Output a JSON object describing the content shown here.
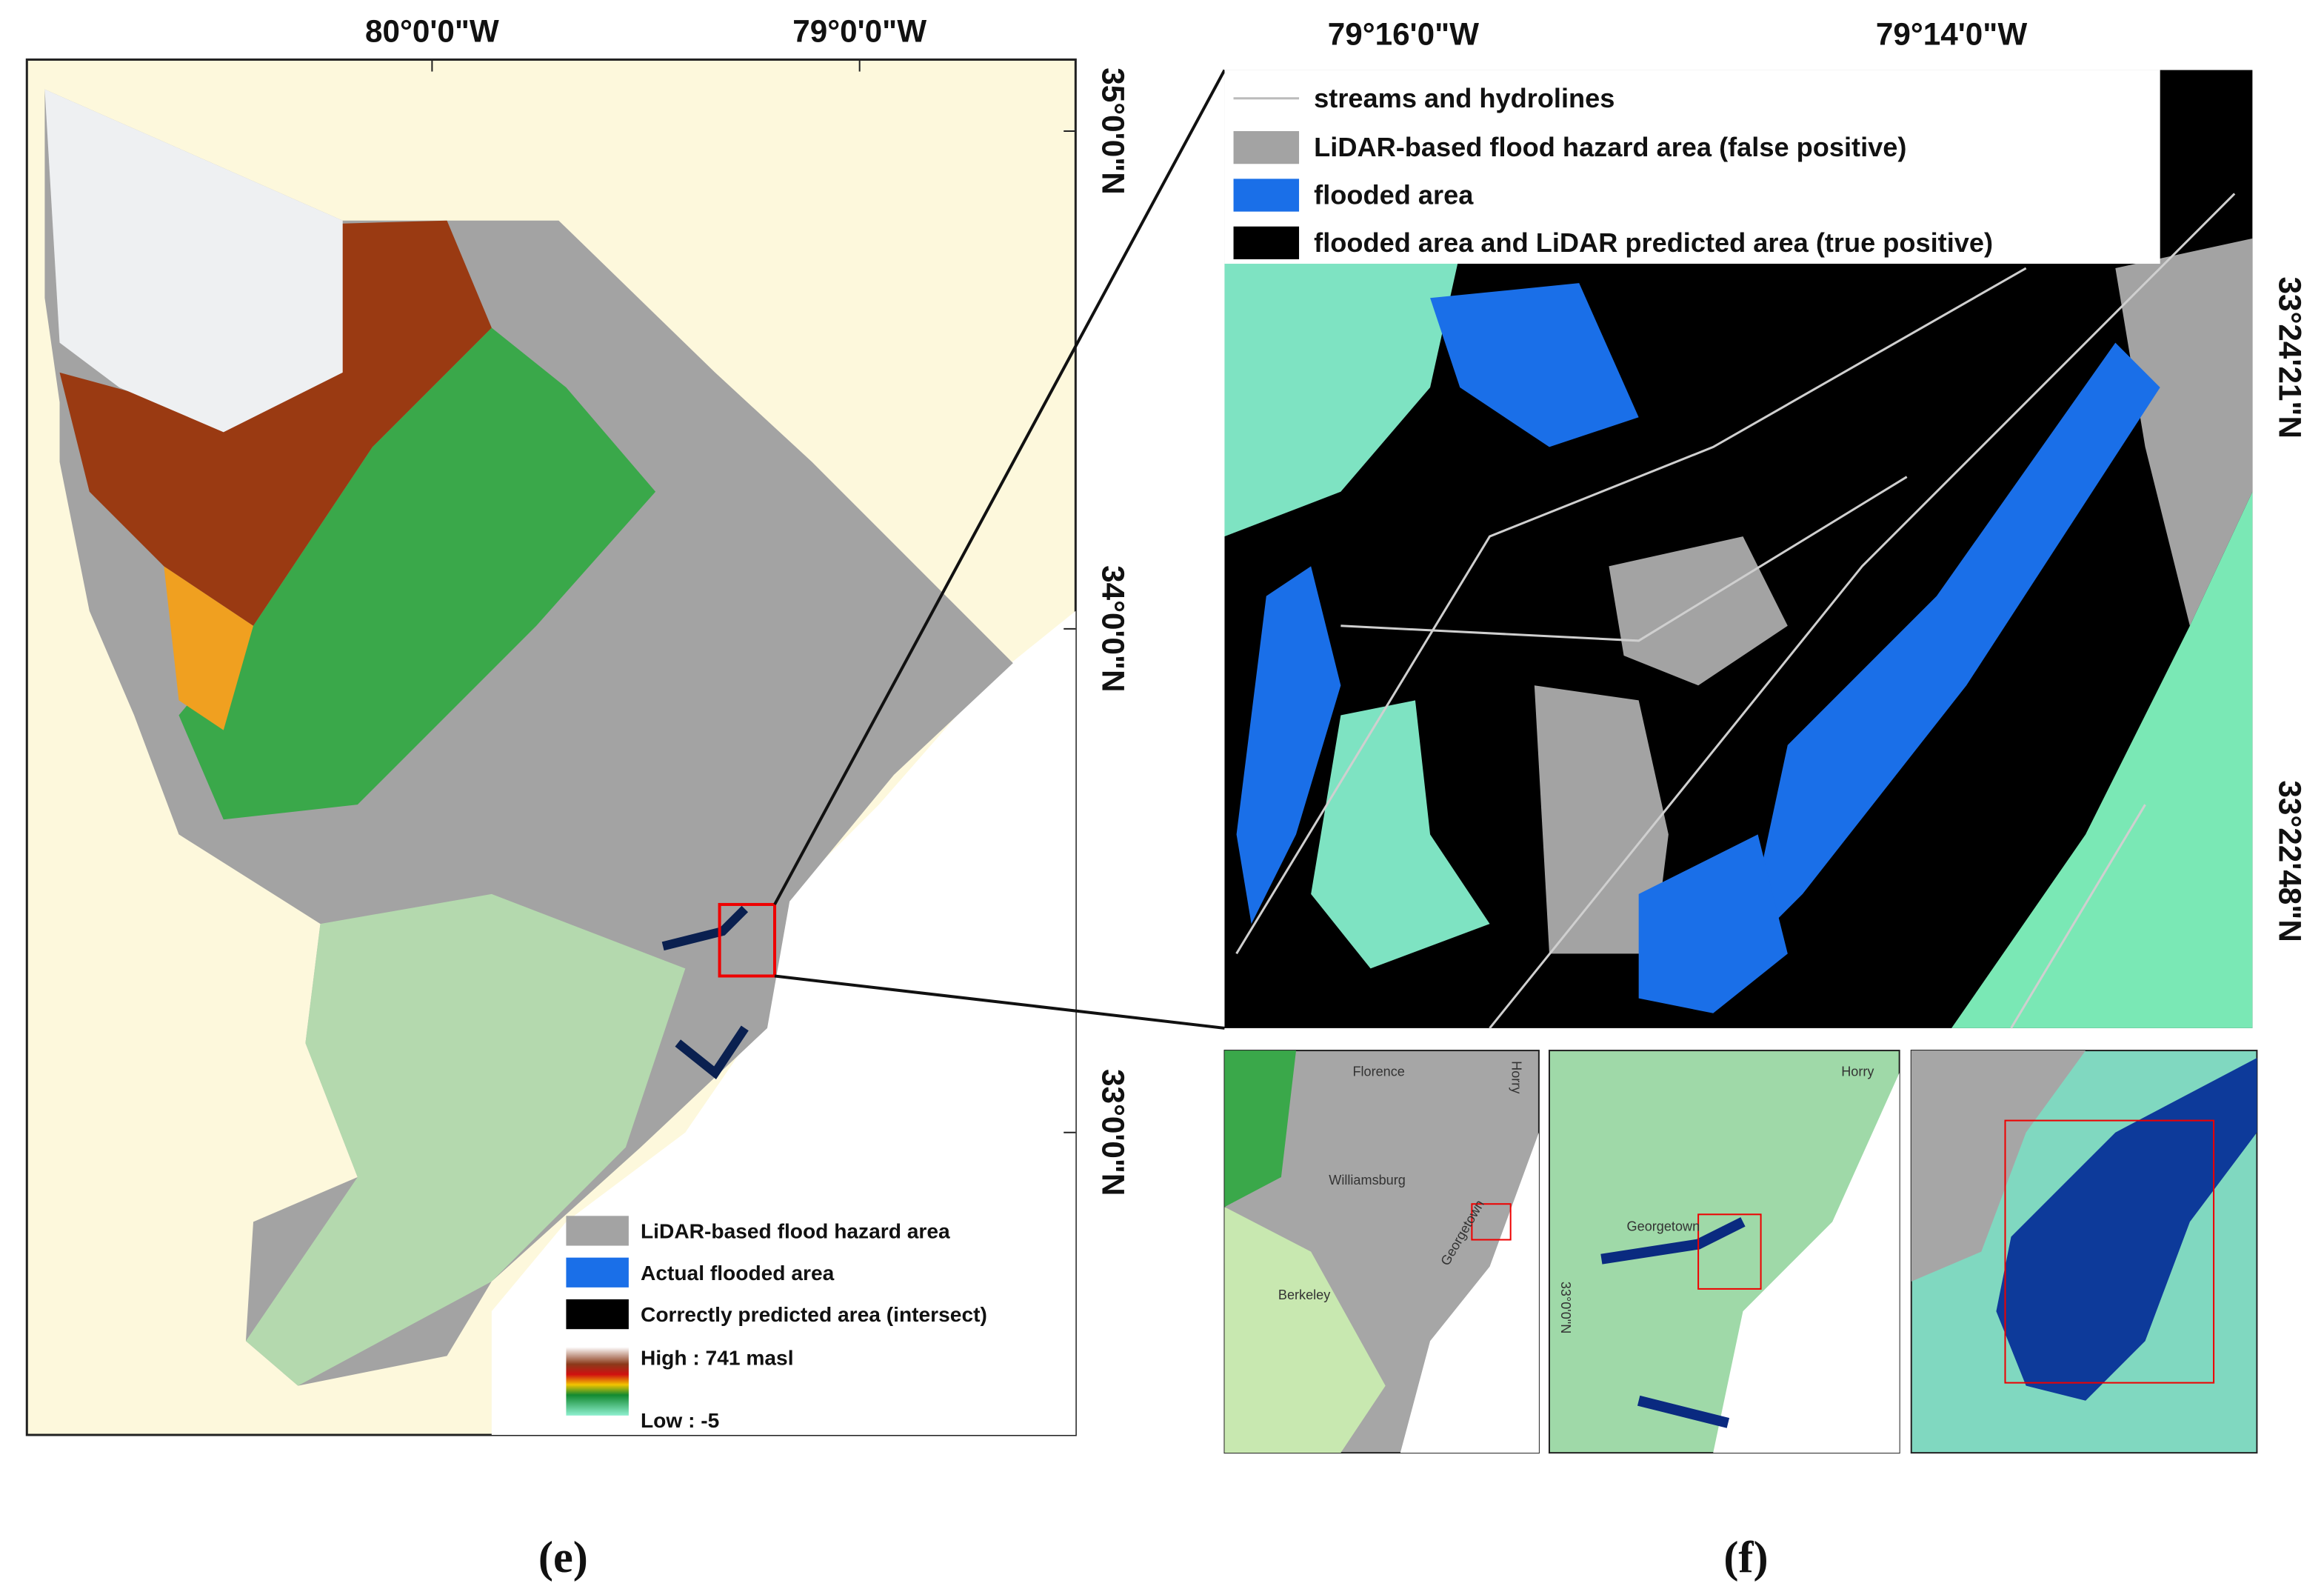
{
  "left_map": {
    "x_labels": [
      "80°0'0\"W",
      "79°0'0\"W"
    ],
    "y_labels": [
      "35°0'0\"N",
      "34°0'0\"N",
      "33°0'0\"N"
    ],
    "legend": [
      "LiDAR-based flood hazard area",
      "Actual flooded area",
      "Correctly predicted area (intersect)",
      "High : 741 masl",
      "Low : -5"
    ]
  },
  "right_map": {
    "x_labels": [
      "79°16'0\"W",
      "79°14'0\"W"
    ],
    "y_labels": [
      "33°24'21\"N",
      "33°22'48\"N"
    ],
    "legend": [
      "streams and hydrolines",
      "LiDAR-based flood hazard area (false positive)",
      "flooded area",
      "flooded area and LiDAR predicted area (true positive)"
    ]
  },
  "insets": {
    "first": [
      "Florence",
      "Horry",
      "Williamsburg",
      "Georgetown",
      "Berkeley"
    ],
    "second": [
      "Horry",
      "Georgetown",
      "33°0'0\"N"
    ]
  },
  "captions": [
    "(e)",
    "(f)"
  ]
}
